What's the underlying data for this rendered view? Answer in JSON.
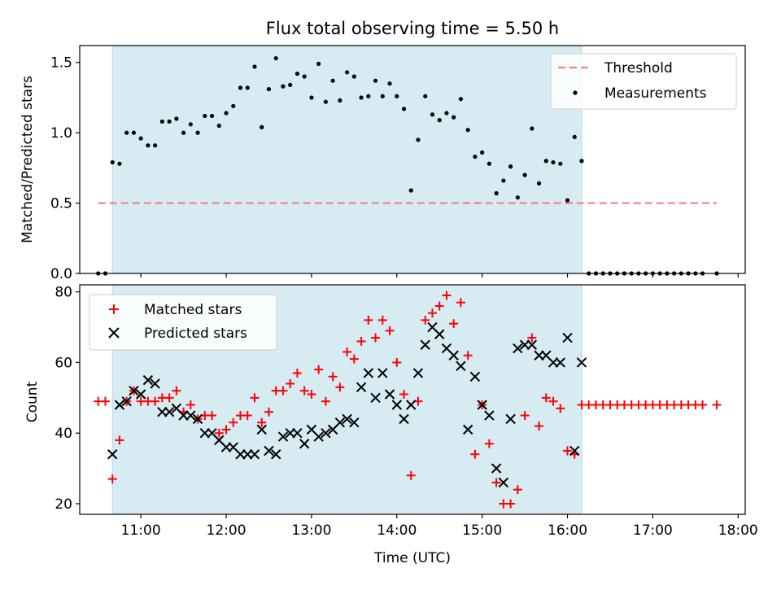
{
  "chart_data": [
    {
      "type": "scatter",
      "title": "Flux total observing time = 5.50 h",
      "ylabel": "Matched/Predicted stars",
      "xlabel": "",
      "ylim": [
        0,
        1.62
      ],
      "yticks": [
        0.0,
        0.5,
        1.0,
        1.5
      ],
      "ytick_labels": [
        "0.0",
        "0.5",
        "1.0",
        "1.5"
      ],
      "xlim": [
        "10:17",
        "18:05"
      ],
      "xticks": [
        "11:00",
        "12:00",
        "13:00",
        "14:00",
        "15:00",
        "16:00",
        "17:00",
        "18:00"
      ],
      "observing_window": [
        "10:40",
        "16:10"
      ],
      "legend_position": "upper right",
      "grid": false,
      "threshold": {
        "name": "Threshold",
        "y": 0.5,
        "x": [
          "10:30",
          "17:45"
        ],
        "color": "#f08080"
      },
      "series": [
        {
          "name": "Measurements",
          "color": "#000000",
          "x": [
            "10:30",
            "10:35",
            "10:40",
            "10:45",
            "10:50",
            "10:55",
            "11:00",
            "11:05",
            "11:10",
            "11:15",
            "11:20",
            "11:25",
            "11:30",
            "11:35",
            "11:40",
            "11:45",
            "11:50",
            "11:55",
            "12:00",
            "12:05",
            "12:10",
            "12:15",
            "12:20",
            "12:25",
            "12:30",
            "12:35",
            "12:40",
            "12:45",
            "12:50",
            "12:55",
            "13:00",
            "13:05",
            "13:10",
            "13:15",
            "13:20",
            "13:25",
            "13:30",
            "13:35",
            "13:40",
            "13:45",
            "13:50",
            "13:55",
            "14:00",
            "14:05",
            "14:10",
            "14:15",
            "14:20",
            "14:25",
            "14:30",
            "14:35",
            "14:40",
            "14:45",
            "14:50",
            "14:55",
            "15:00",
            "15:05",
            "15:10",
            "15:15",
            "15:20",
            "15:25",
            "15:30",
            "15:35",
            "15:40",
            "15:45",
            "15:50",
            "15:55",
            "16:00",
            "16:05",
            "16:10",
            "16:15",
            "16:20",
            "16:25",
            "16:30",
            "16:35",
            "16:40",
            "16:45",
            "16:50",
            "16:55",
            "17:00",
            "17:05",
            "17:10",
            "17:15",
            "17:20",
            "17:25",
            "17:30",
            "17:35",
            "17:45"
          ],
          "y": [
            0,
            0,
            0.79,
            0.78,
            1.0,
            1.0,
            0.96,
            0.91,
            0.91,
            1.08,
            1.08,
            1.1,
            1.0,
            1.06,
            1.0,
            1.12,
            1.12,
            1.05,
            1.14,
            1.19,
            1.32,
            1.32,
            1.47,
            1.04,
            1.31,
            1.53,
            1.33,
            1.34,
            1.42,
            1.4,
            1.25,
            1.49,
            1.22,
            1.37,
            1.23,
            1.43,
            1.4,
            1.25,
            1.26,
            1.37,
            1.26,
            1.35,
            1.26,
            1.17,
            0.59,
            0.95,
            1.26,
            1.13,
            1.09,
            1.14,
            1.11,
            1.24,
            1.02,
            0.83,
            0.86,
            0.78,
            0.57,
            0.66,
            0.76,
            0.54,
            0.7,
            1.03,
            0.64,
            0.8,
            0.79,
            0.78,
            0.52,
            0.97,
            0.8,
            0,
            0,
            0,
            0,
            0,
            0,
            0,
            0,
            0,
            0,
            0,
            0,
            0,
            0,
            0,
            0,
            0,
            0
          ]
        }
      ]
    },
    {
      "type": "scatter",
      "title": "",
      "xlabel": "Time (UTC)",
      "ylabel": "Count",
      "ylim": [
        17,
        82
      ],
      "yticks": [
        20,
        40,
        60,
        80
      ],
      "ytick_labels": [
        "20",
        "40",
        "60",
        "80"
      ],
      "xlim": [
        "10:17",
        "18:05"
      ],
      "xticks": [
        "11:00",
        "12:00",
        "13:00",
        "14:00",
        "15:00",
        "16:00",
        "17:00",
        "18:00"
      ],
      "xtick_labels": [
        "11:00",
        "12:00",
        "13:00",
        "14:00",
        "15:00",
        "16:00",
        "17:00",
        "18:00"
      ],
      "observing_window": [
        "10:40",
        "16:10"
      ],
      "legend_position": "upper left",
      "grid": false,
      "series": [
        {
          "name": "Matched stars",
          "color": "#ff0000",
          "marker": "plus",
          "x": [
            "10:30",
            "10:35",
            "10:40",
            "10:45",
            "10:50",
            "10:55",
            "11:00",
            "11:05",
            "11:10",
            "11:15",
            "11:20",
            "11:25",
            "11:30",
            "11:35",
            "11:40",
            "11:45",
            "11:50",
            "11:55",
            "12:00",
            "12:05",
            "12:10",
            "12:15",
            "12:20",
            "12:25",
            "12:30",
            "12:35",
            "12:40",
            "12:45",
            "12:50",
            "12:55",
            "13:00",
            "13:05",
            "13:10",
            "13:15",
            "13:20",
            "13:25",
            "13:30",
            "13:35",
            "13:40",
            "13:45",
            "13:50",
            "13:55",
            "14:00",
            "14:05",
            "14:10",
            "14:15",
            "14:20",
            "14:25",
            "14:30",
            "14:35",
            "14:40",
            "14:45",
            "14:50",
            "14:55",
            "15:00",
            "15:05",
            "15:10",
            "15:15",
            "15:20",
            "15:25",
            "15:30",
            "15:35",
            "15:40",
            "15:45",
            "15:50",
            "15:55",
            "16:00",
            "16:05",
            "16:10",
            "16:15",
            "16:20",
            "16:25",
            "16:30",
            "16:35",
            "16:40",
            "16:45",
            "16:50",
            "16:55",
            "17:00",
            "17:05",
            "17:10",
            "17:15",
            "17:20",
            "17:25",
            "17:30",
            "17:35",
            "17:45"
          ],
          "y": [
            49,
            49,
            27,
            38,
            49,
            52,
            49,
            49,
            49,
            50,
            50,
            52,
            46,
            48,
            44,
            45,
            45,
            40,
            41,
            43,
            45,
            45,
            50,
            43,
            46,
            52,
            52,
            54,
            57,
            52,
            51,
            58,
            49,
            56,
            53,
            63,
            61,
            66,
            72,
            67,
            72,
            69,
            60,
            51,
            28,
            49,
            72,
            74,
            76,
            79,
            71,
            77,
            62,
            34,
            48,
            37,
            26,
            20,
            20,
            24,
            45,
            67,
            42,
            50,
            49,
            47,
            35,
            34,
            48,
            48,
            48,
            48,
            48,
            48,
            48,
            48,
            48,
            48,
            48,
            48,
            48,
            48,
            48,
            48,
            48,
            48,
            48
          ]
        },
        {
          "name": "Predicted stars",
          "color": "#000000",
          "marker": "x",
          "x": [
            "10:40",
            "10:45",
            "10:50",
            "10:55",
            "11:00",
            "11:05",
            "11:10",
            "11:15",
            "11:20",
            "11:25",
            "11:30",
            "11:35",
            "11:40",
            "11:45",
            "11:50",
            "11:55",
            "12:00",
            "12:05",
            "12:10",
            "12:15",
            "12:20",
            "12:25",
            "12:30",
            "12:35",
            "12:40",
            "12:45",
            "12:50",
            "12:55",
            "13:00",
            "13:05",
            "13:10",
            "13:15",
            "13:20",
            "13:25",
            "13:30",
            "13:35",
            "13:40",
            "13:45",
            "13:50",
            "13:55",
            "14:00",
            "14:05",
            "14:10",
            "14:15",
            "14:20",
            "14:25",
            "14:30",
            "14:35",
            "14:40",
            "14:45",
            "14:50",
            "14:55",
            "15:00",
            "15:05",
            "15:10",
            "15:15",
            "15:20",
            "15:25",
            "15:30",
            "15:35",
            "15:40",
            "15:45",
            "15:50",
            "15:55",
            "16:00",
            "16:05",
            "16:10"
          ],
          "y": [
            34,
            48,
            49,
            52,
            51,
            55,
            54,
            46,
            46,
            47,
            45,
            45,
            44,
            40,
            40,
            38,
            36,
            36,
            34,
            34,
            34,
            41,
            35,
            34,
            39,
            40,
            40,
            37,
            41,
            39,
            40,
            41,
            43,
            44,
            43,
            53,
            57,
            50,
            57,
            51,
            48,
            44,
            48,
            57,
            65,
            70,
            68,
            64,
            62,
            59,
            41,
            56,
            48,
            45,
            30,
            26,
            44,
            64,
            65,
            65,
            62,
            62,
            60,
            60,
            67,
            35,
            60
          ]
        }
      ]
    }
  ]
}
